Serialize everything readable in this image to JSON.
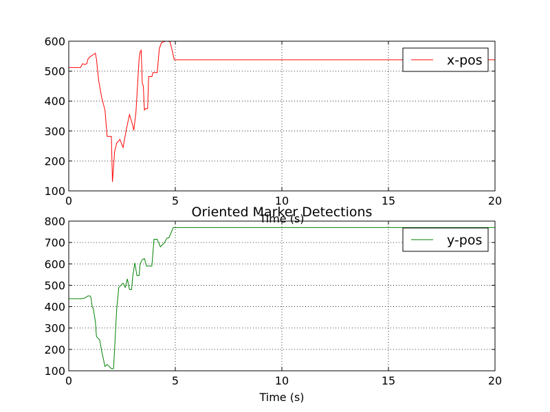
{
  "figure": {
    "title": "Oriented Marker Detections"
  },
  "chart_data": [
    {
      "type": "line",
      "xlabel": "Time (s)",
      "ylabel": "",
      "xlim": [
        0,
        20
      ],
      "ylim": [
        100,
        600
      ],
      "xticks": [
        0,
        5,
        10,
        15,
        20
      ],
      "yticks": [
        100,
        200,
        300,
        400,
        500,
        600
      ],
      "grid": true,
      "legend": "top-right",
      "series": [
        {
          "name": "x-pos",
          "color": "#ff0000",
          "x": [
            0,
            0.55,
            0.65,
            0.75,
            0.85,
            0.9,
            1.0,
            1.15,
            1.25,
            1.3,
            1.4,
            1.55,
            1.7,
            1.8,
            2.0,
            2.05,
            2.15,
            2.25,
            2.4,
            2.55,
            2.7,
            2.85,
            3.0,
            3.05,
            3.15,
            3.3,
            3.35,
            3.4,
            3.45,
            3.5,
            3.55,
            3.6,
            3.65,
            3.7,
            3.75,
            3.8,
            3.85,
            3.9,
            3.95,
            4.05,
            4.15,
            4.25,
            4.35,
            4.45,
            4.55,
            4.65,
            4.75,
            4.85,
            4.95,
            5.1,
            20
          ],
          "values": [
            512,
            512,
            525,
            522,
            525,
            540,
            548,
            555,
            560,
            540,
            470,
            410,
            370,
            282,
            282,
            130,
            230,
            260,
            272,
            245,
            305,
            355,
            320,
            302,
            360,
            540,
            565,
            570,
            460,
            450,
            370,
            375,
            375,
            375,
            482,
            482,
            482,
            482,
            495,
            495,
            495,
            575,
            595,
            598,
            600,
            600,
            598,
            570,
            538,
            538,
            538
          ]
        }
      ]
    },
    {
      "type": "line",
      "xlabel": "Time (s)",
      "ylabel": "",
      "xlim": [
        0,
        20
      ],
      "ylim": [
        100,
        800
      ],
      "xticks": [
        0,
        5,
        10,
        15,
        20
      ],
      "yticks": [
        100,
        200,
        300,
        400,
        500,
        600,
        700,
        800
      ],
      "grid": true,
      "legend": "top-right",
      "series": [
        {
          "name": "y-pos",
          "color": "#008000",
          "x": [
            0,
            0.6,
            0.75,
            0.9,
            1.0,
            1.05,
            1.1,
            1.15,
            1.25,
            1.3,
            1.45,
            1.55,
            1.7,
            1.8,
            2.0,
            2.1,
            2.15,
            2.25,
            2.35,
            2.45,
            2.55,
            2.65,
            2.75,
            2.85,
            2.95,
            3.0,
            3.1,
            3.2,
            3.3,
            3.35,
            3.45,
            3.55,
            3.65,
            3.75,
            3.9,
            4.0,
            4.05,
            4.15,
            4.3,
            4.4,
            4.5,
            4.6,
            4.7,
            4.8,
            4.9,
            5.0,
            20
          ],
          "values": [
            437,
            437,
            440,
            450,
            450,
            440,
            400,
            390,
            330,
            260,
            245,
            190,
            120,
            130,
            110,
            110,
            200,
            390,
            490,
            500,
            510,
            490,
            530,
            480,
            480,
            540,
            605,
            545,
            545,
            600,
            620,
            625,
            590,
            590,
            590,
            715,
            715,
            715,
            680,
            690,
            700,
            720,
            722,
            745,
            770,
            770,
            770
          ]
        }
      ]
    }
  ]
}
